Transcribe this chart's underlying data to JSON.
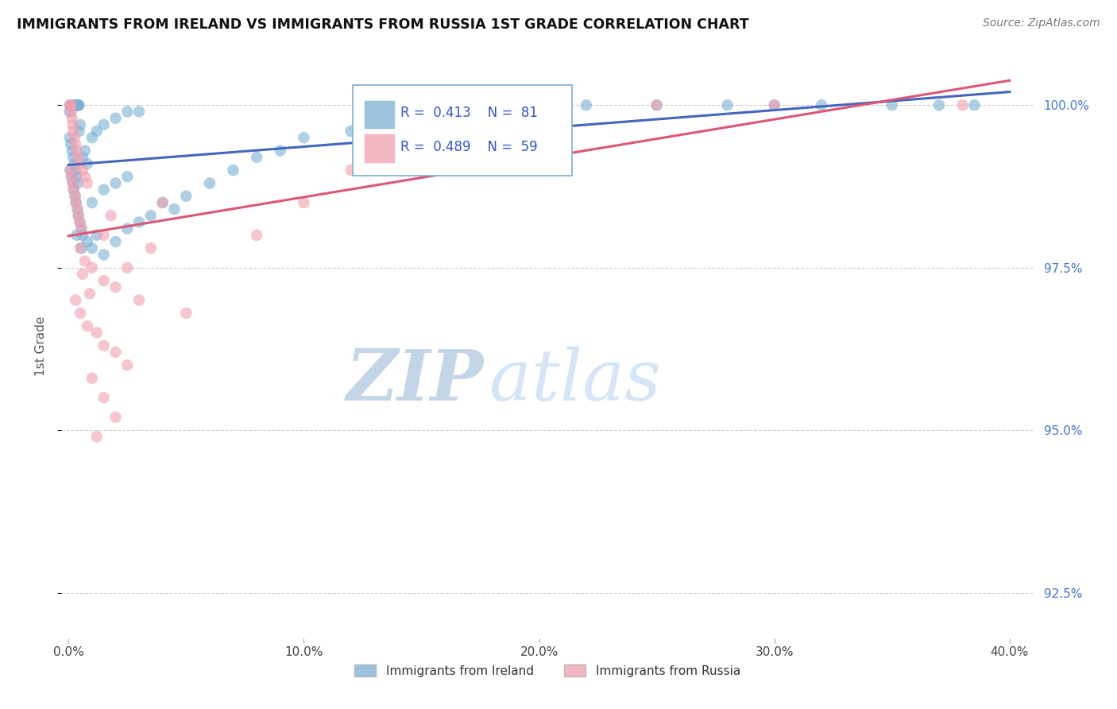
{
  "title": "IMMIGRANTS FROM IRELAND VS IMMIGRANTS FROM RUSSIA 1ST GRADE CORRELATION CHART",
  "source": "Source: ZipAtlas.com",
  "ylabel_label": "1st Grade",
  "ylabel_ticks": [
    92.5,
    95.0,
    97.5,
    100.0
  ],
  "xlabel_ticks": [
    0.0,
    10.0,
    20.0,
    30.0,
    40.0
  ],
  "ylim": [
    91.8,
    100.8
  ],
  "xlim": [
    -0.3,
    41.0
  ],
  "ireland_R": 0.413,
  "ireland_N": 81,
  "russia_R": 0.489,
  "russia_N": 59,
  "ireland_color": "#7bafd4",
  "russia_color": "#f0a0b0",
  "ireland_line_color": "#4466bb",
  "russia_line_color": "#dd5577",
  "watermark_zip_color": "#c5d5e8",
  "watermark_atlas_color": "#d5e5f5",
  "ireland_scatter": [
    [
      0.05,
      99.9
    ],
    [
      0.08,
      100.0
    ],
    [
      0.1,
      100.0
    ],
    [
      0.12,
      100.0
    ],
    [
      0.15,
      100.0
    ],
    [
      0.18,
      100.0
    ],
    [
      0.2,
      100.0
    ],
    [
      0.22,
      100.0
    ],
    [
      0.25,
      100.0
    ],
    [
      0.28,
      100.0
    ],
    [
      0.3,
      100.0
    ],
    [
      0.32,
      100.0
    ],
    [
      0.35,
      100.0
    ],
    [
      0.38,
      100.0
    ],
    [
      0.4,
      100.0
    ],
    [
      0.42,
      100.0
    ],
    [
      0.45,
      100.0
    ],
    [
      0.05,
      99.5
    ],
    [
      0.1,
      99.4
    ],
    [
      0.15,
      99.3
    ],
    [
      0.2,
      99.2
    ],
    [
      0.25,
      99.1
    ],
    [
      0.3,
      99.0
    ],
    [
      0.35,
      98.9
    ],
    [
      0.4,
      98.8
    ],
    [
      0.45,
      99.6
    ],
    [
      0.5,
      99.7
    ],
    [
      0.08,
      99.0
    ],
    [
      0.12,
      98.9
    ],
    [
      0.18,
      98.8
    ],
    [
      0.22,
      98.7
    ],
    [
      0.28,
      98.6
    ],
    [
      0.32,
      98.5
    ],
    [
      0.38,
      98.4
    ],
    [
      0.42,
      98.3
    ],
    [
      0.48,
      98.2
    ],
    [
      0.55,
      98.1
    ],
    [
      1.0,
      98.5
    ],
    [
      1.5,
      98.7
    ],
    [
      2.0,
      98.8
    ],
    [
      2.5,
      98.9
    ],
    [
      0.6,
      99.2
    ],
    [
      0.7,
      99.3
    ],
    [
      0.8,
      99.1
    ],
    [
      1.0,
      99.5
    ],
    [
      1.2,
      99.6
    ],
    [
      1.5,
      99.7
    ],
    [
      2.0,
      99.8
    ],
    [
      2.5,
      99.9
    ],
    [
      3.0,
      99.9
    ],
    [
      0.6,
      98.0
    ],
    [
      0.8,
      97.9
    ],
    [
      1.0,
      97.8
    ],
    [
      1.5,
      97.7
    ],
    [
      2.0,
      97.9
    ],
    [
      3.0,
      98.2
    ],
    [
      4.0,
      98.5
    ],
    [
      5.0,
      98.6
    ],
    [
      6.0,
      98.8
    ],
    [
      7.0,
      99.0
    ],
    [
      8.0,
      99.2
    ],
    [
      9.0,
      99.3
    ],
    [
      10.0,
      99.5
    ],
    [
      12.0,
      99.6
    ],
    [
      15.0,
      99.8
    ],
    [
      17.0,
      99.9
    ],
    [
      20.0,
      100.0
    ],
    [
      22.0,
      100.0
    ],
    [
      25.0,
      100.0
    ],
    [
      28.0,
      100.0
    ],
    [
      30.0,
      100.0
    ],
    [
      32.0,
      100.0
    ],
    [
      35.0,
      100.0
    ],
    [
      37.0,
      100.0
    ],
    [
      38.5,
      100.0
    ],
    [
      0.35,
      98.0
    ],
    [
      0.55,
      97.8
    ],
    [
      1.2,
      98.0
    ],
    [
      2.5,
      98.1
    ],
    [
      3.5,
      98.3
    ],
    [
      4.5,
      98.4
    ]
  ],
  "russia_scatter": [
    [
      0.05,
      100.0
    ],
    [
      0.08,
      100.0
    ],
    [
      0.1,
      100.0
    ],
    [
      0.12,
      99.9
    ],
    [
      0.15,
      99.8
    ],
    [
      0.18,
      99.7
    ],
    [
      0.2,
      99.6
    ],
    [
      0.25,
      99.5
    ],
    [
      0.3,
      99.4
    ],
    [
      0.35,
      99.3
    ],
    [
      0.4,
      99.2
    ],
    [
      0.45,
      99.1
    ],
    [
      0.08,
      99.0
    ],
    [
      0.12,
      98.9
    ],
    [
      0.18,
      98.8
    ],
    [
      0.22,
      98.7
    ],
    [
      0.28,
      98.6
    ],
    [
      0.32,
      98.5
    ],
    [
      0.38,
      98.4
    ],
    [
      0.42,
      98.3
    ],
    [
      0.48,
      98.2
    ],
    [
      0.55,
      98.1
    ],
    [
      0.6,
      99.0
    ],
    [
      0.7,
      98.9
    ],
    [
      0.8,
      98.8
    ],
    [
      0.5,
      97.8
    ],
    [
      0.7,
      97.6
    ],
    [
      1.0,
      97.5
    ],
    [
      1.5,
      97.3
    ],
    [
      2.0,
      97.2
    ],
    [
      0.3,
      97.0
    ],
    [
      0.5,
      96.8
    ],
    [
      0.8,
      96.6
    ],
    [
      1.2,
      96.5
    ],
    [
      1.5,
      96.3
    ],
    [
      2.0,
      96.2
    ],
    [
      2.5,
      96.0
    ],
    [
      1.0,
      95.8
    ],
    [
      1.5,
      95.5
    ],
    [
      2.0,
      95.2
    ],
    [
      1.2,
      94.9
    ],
    [
      1.5,
      98.0
    ],
    [
      0.9,
      97.1
    ],
    [
      2.5,
      97.5
    ],
    [
      3.0,
      97.0
    ],
    [
      4.0,
      98.5
    ],
    [
      1.8,
      98.3
    ],
    [
      0.6,
      97.4
    ],
    [
      3.5,
      97.8
    ],
    [
      18.0,
      99.8
    ],
    [
      20.0,
      99.9
    ],
    [
      25.0,
      100.0
    ],
    [
      30.0,
      100.0
    ],
    [
      38.0,
      100.0
    ],
    [
      8.0,
      98.0
    ],
    [
      10.0,
      98.5
    ],
    [
      12.0,
      99.0
    ],
    [
      15.0,
      99.3
    ],
    [
      5.0,
      96.8
    ]
  ]
}
